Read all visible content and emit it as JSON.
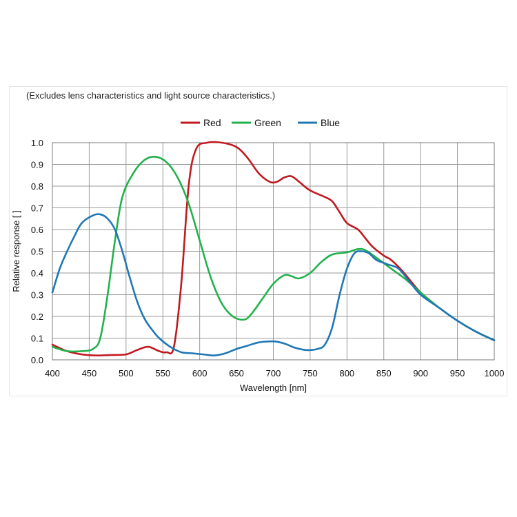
{
  "chart_data": {
    "type": "line",
    "subtitle": "(Excludes lens characteristics and light source characteristics.)",
    "xlabel": "Wavelength [nm]",
    "ylabel": "Relative response [ ]",
    "xlim": [
      400,
      1000
    ],
    "ylim": [
      0,
      1.0
    ],
    "x_ticks": [
      400,
      450,
      500,
      550,
      600,
      650,
      700,
      750,
      800,
      850,
      900,
      950,
      1000
    ],
    "y_ticks": [
      "0.0",
      "0.1",
      "0.2",
      "0.3",
      "0.4",
      "0.5",
      "0.6",
      "0.7",
      "0.8",
      "0.9",
      "1.0"
    ],
    "grid": true,
    "legend_position": "top-center",
    "series": [
      {
        "name": "Red",
        "color": "#c0191f",
        "points": [
          [
            400,
            0.07
          ],
          [
            420,
            0.04
          ],
          [
            440,
            0.025
          ],
          [
            460,
            0.02
          ],
          [
            480,
            0.022
          ],
          [
            500,
            0.025
          ],
          [
            515,
            0.045
          ],
          [
            530,
            0.06
          ],
          [
            545,
            0.04
          ],
          [
            555,
            0.035
          ],
          [
            565,
            0.06
          ],
          [
            575,
            0.35
          ],
          [
            585,
            0.8
          ],
          [
            595,
            0.97
          ],
          [
            610,
            1.0
          ],
          [
            630,
            1.0
          ],
          [
            650,
            0.98
          ],
          [
            665,
            0.93
          ],
          [
            680,
            0.86
          ],
          [
            695,
            0.82
          ],
          [
            705,
            0.82
          ],
          [
            715,
            0.84
          ],
          [
            725,
            0.845
          ],
          [
            735,
            0.82
          ],
          [
            750,
            0.78
          ],
          [
            770,
            0.75
          ],
          [
            780,
            0.73
          ],
          [
            790,
            0.68
          ],
          [
            800,
            0.63
          ],
          [
            815,
            0.6
          ],
          [
            825,
            0.56
          ],
          [
            835,
            0.52
          ],
          [
            850,
            0.48
          ],
          [
            860,
            0.46
          ],
          [
            875,
            0.41
          ],
          [
            900,
            0.31
          ],
          [
            925,
            0.24
          ],
          [
            950,
            0.18
          ],
          [
            975,
            0.13
          ],
          [
            1000,
            0.09
          ]
        ]
      },
      {
        "name": "Green",
        "color": "#22b14c",
        "points": [
          [
            400,
            0.06
          ],
          [
            420,
            0.04
          ],
          [
            440,
            0.04
          ],
          [
            455,
            0.05
          ],
          [
            465,
            0.1
          ],
          [
            475,
            0.3
          ],
          [
            485,
            0.55
          ],
          [
            495,
            0.75
          ],
          [
            510,
            0.86
          ],
          [
            525,
            0.92
          ],
          [
            540,
            0.935
          ],
          [
            555,
            0.91
          ],
          [
            570,
            0.84
          ],
          [
            585,
            0.72
          ],
          [
            600,
            0.55
          ],
          [
            615,
            0.38
          ],
          [
            630,
            0.26
          ],
          [
            645,
            0.2
          ],
          [
            660,
            0.185
          ],
          [
            670,
            0.21
          ],
          [
            685,
            0.28
          ],
          [
            700,
            0.35
          ],
          [
            715,
            0.39
          ],
          [
            725,
            0.385
          ],
          [
            735,
            0.375
          ],
          [
            750,
            0.4
          ],
          [
            765,
            0.45
          ],
          [
            780,
            0.485
          ],
          [
            800,
            0.495
          ],
          [
            815,
            0.51
          ],
          [
            825,
            0.505
          ],
          [
            840,
            0.47
          ],
          [
            860,
            0.42
          ],
          [
            880,
            0.37
          ],
          [
            900,
            0.31
          ],
          [
            925,
            0.24
          ],
          [
            950,
            0.18
          ],
          [
            975,
            0.13
          ],
          [
            1000,
            0.09
          ]
        ]
      },
      {
        "name": "Blue",
        "color": "#1f77b4",
        "points": [
          [
            400,
            0.31
          ],
          [
            410,
            0.42
          ],
          [
            420,
            0.5
          ],
          [
            430,
            0.57
          ],
          [
            440,
            0.63
          ],
          [
            455,
            0.665
          ],
          [
            465,
            0.67
          ],
          [
            475,
            0.65
          ],
          [
            485,
            0.6
          ],
          [
            495,
            0.5
          ],
          [
            505,
            0.38
          ],
          [
            515,
            0.27
          ],
          [
            525,
            0.19
          ],
          [
            535,
            0.14
          ],
          [
            545,
            0.1
          ],
          [
            560,
            0.06
          ],
          [
            575,
            0.035
          ],
          [
            590,
            0.03
          ],
          [
            605,
            0.025
          ],
          [
            620,
            0.02
          ],
          [
            635,
            0.03
          ],
          [
            650,
            0.05
          ],
          [
            665,
            0.065
          ],
          [
            680,
            0.08
          ],
          [
            700,
            0.085
          ],
          [
            715,
            0.075
          ],
          [
            730,
            0.055
          ],
          [
            745,
            0.045
          ],
          [
            760,
            0.05
          ],
          [
            770,
            0.07
          ],
          [
            780,
            0.15
          ],
          [
            790,
            0.3
          ],
          [
            800,
            0.42
          ],
          [
            810,
            0.49
          ],
          [
            820,
            0.5
          ],
          [
            830,
            0.49
          ],
          [
            840,
            0.46
          ],
          [
            855,
            0.44
          ],
          [
            870,
            0.42
          ],
          [
            885,
            0.36
          ],
          [
            900,
            0.3
          ],
          [
            925,
            0.24
          ],
          [
            950,
            0.18
          ],
          [
            975,
            0.13
          ],
          [
            1000,
            0.09
          ]
        ]
      }
    ]
  }
}
